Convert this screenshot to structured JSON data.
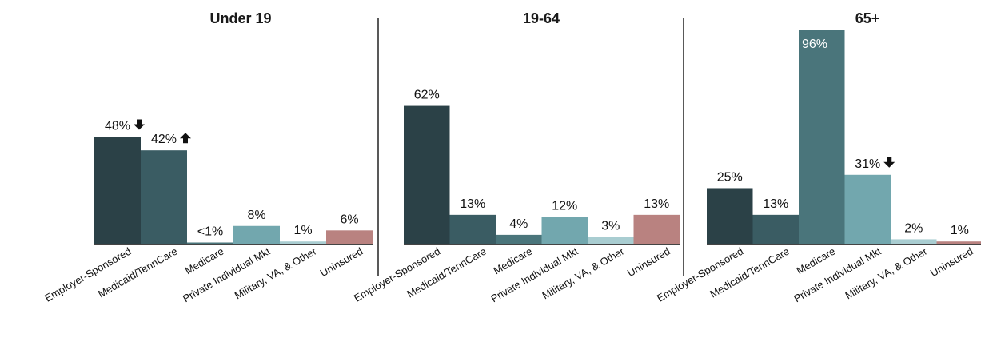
{
  "chart_data": [
    {
      "type": "bar",
      "title": "Under 19",
      "categories": [
        "Employer-Sponsored",
        "Medicaid/TennCare",
        "Medicare",
        "Private Individual Mkt",
        "Military, VA, & Other",
        "Uninsured"
      ],
      "values": [
        48,
        42,
        0.5,
        8,
        1,
        6
      ],
      "labels": [
        "48%",
        "42%",
        "<1%",
        "8%",
        "1%",
        "6%"
      ],
      "arrows": [
        "down",
        "up",
        null,
        null,
        null,
        null
      ],
      "ylim": [
        0,
        96
      ]
    },
    {
      "type": "bar",
      "title": "19-64",
      "categories": [
        "Employer-Sponsored",
        "Medicaid/TennCare",
        "Medicare",
        "Private Individual Mkt",
        "Military, VA, & Other",
        "Uninsured"
      ],
      "values": [
        62,
        13,
        4,
        12,
        3,
        13
      ],
      "labels": [
        "62%",
        "13%",
        "4%",
        "12%",
        "3%",
        "13%"
      ],
      "arrows": [
        null,
        null,
        null,
        null,
        null,
        null
      ],
      "ylim": [
        0,
        96
      ]
    },
    {
      "type": "bar",
      "title": "65+",
      "categories": [
        "Employer-Sponsored",
        "Medicaid/TennCare",
        "Medicare",
        "Private Individual Mkt",
        "Military, VA, & Other",
        "Uninsured"
      ],
      "values": [
        25,
        13,
        96,
        31,
        2,
        1
      ],
      "labels": [
        "25%",
        "13%",
        "96%",
        "31%",
        "2%",
        "1%"
      ],
      "arrows": [
        null,
        null,
        null,
        "down",
        null,
        null
      ],
      "ylim": [
        0,
        96
      ]
    }
  ],
  "colors": {
    "Employer-Sponsored": "#2b4147",
    "Medicaid/TennCare": "#3a5c63",
    "Medicare": "#4a757b",
    "Private Individual Mkt": "#72a7ae",
    "Military, VA, & Other": "#a9cdd1",
    "Uninsured": "#b98280"
  }
}
